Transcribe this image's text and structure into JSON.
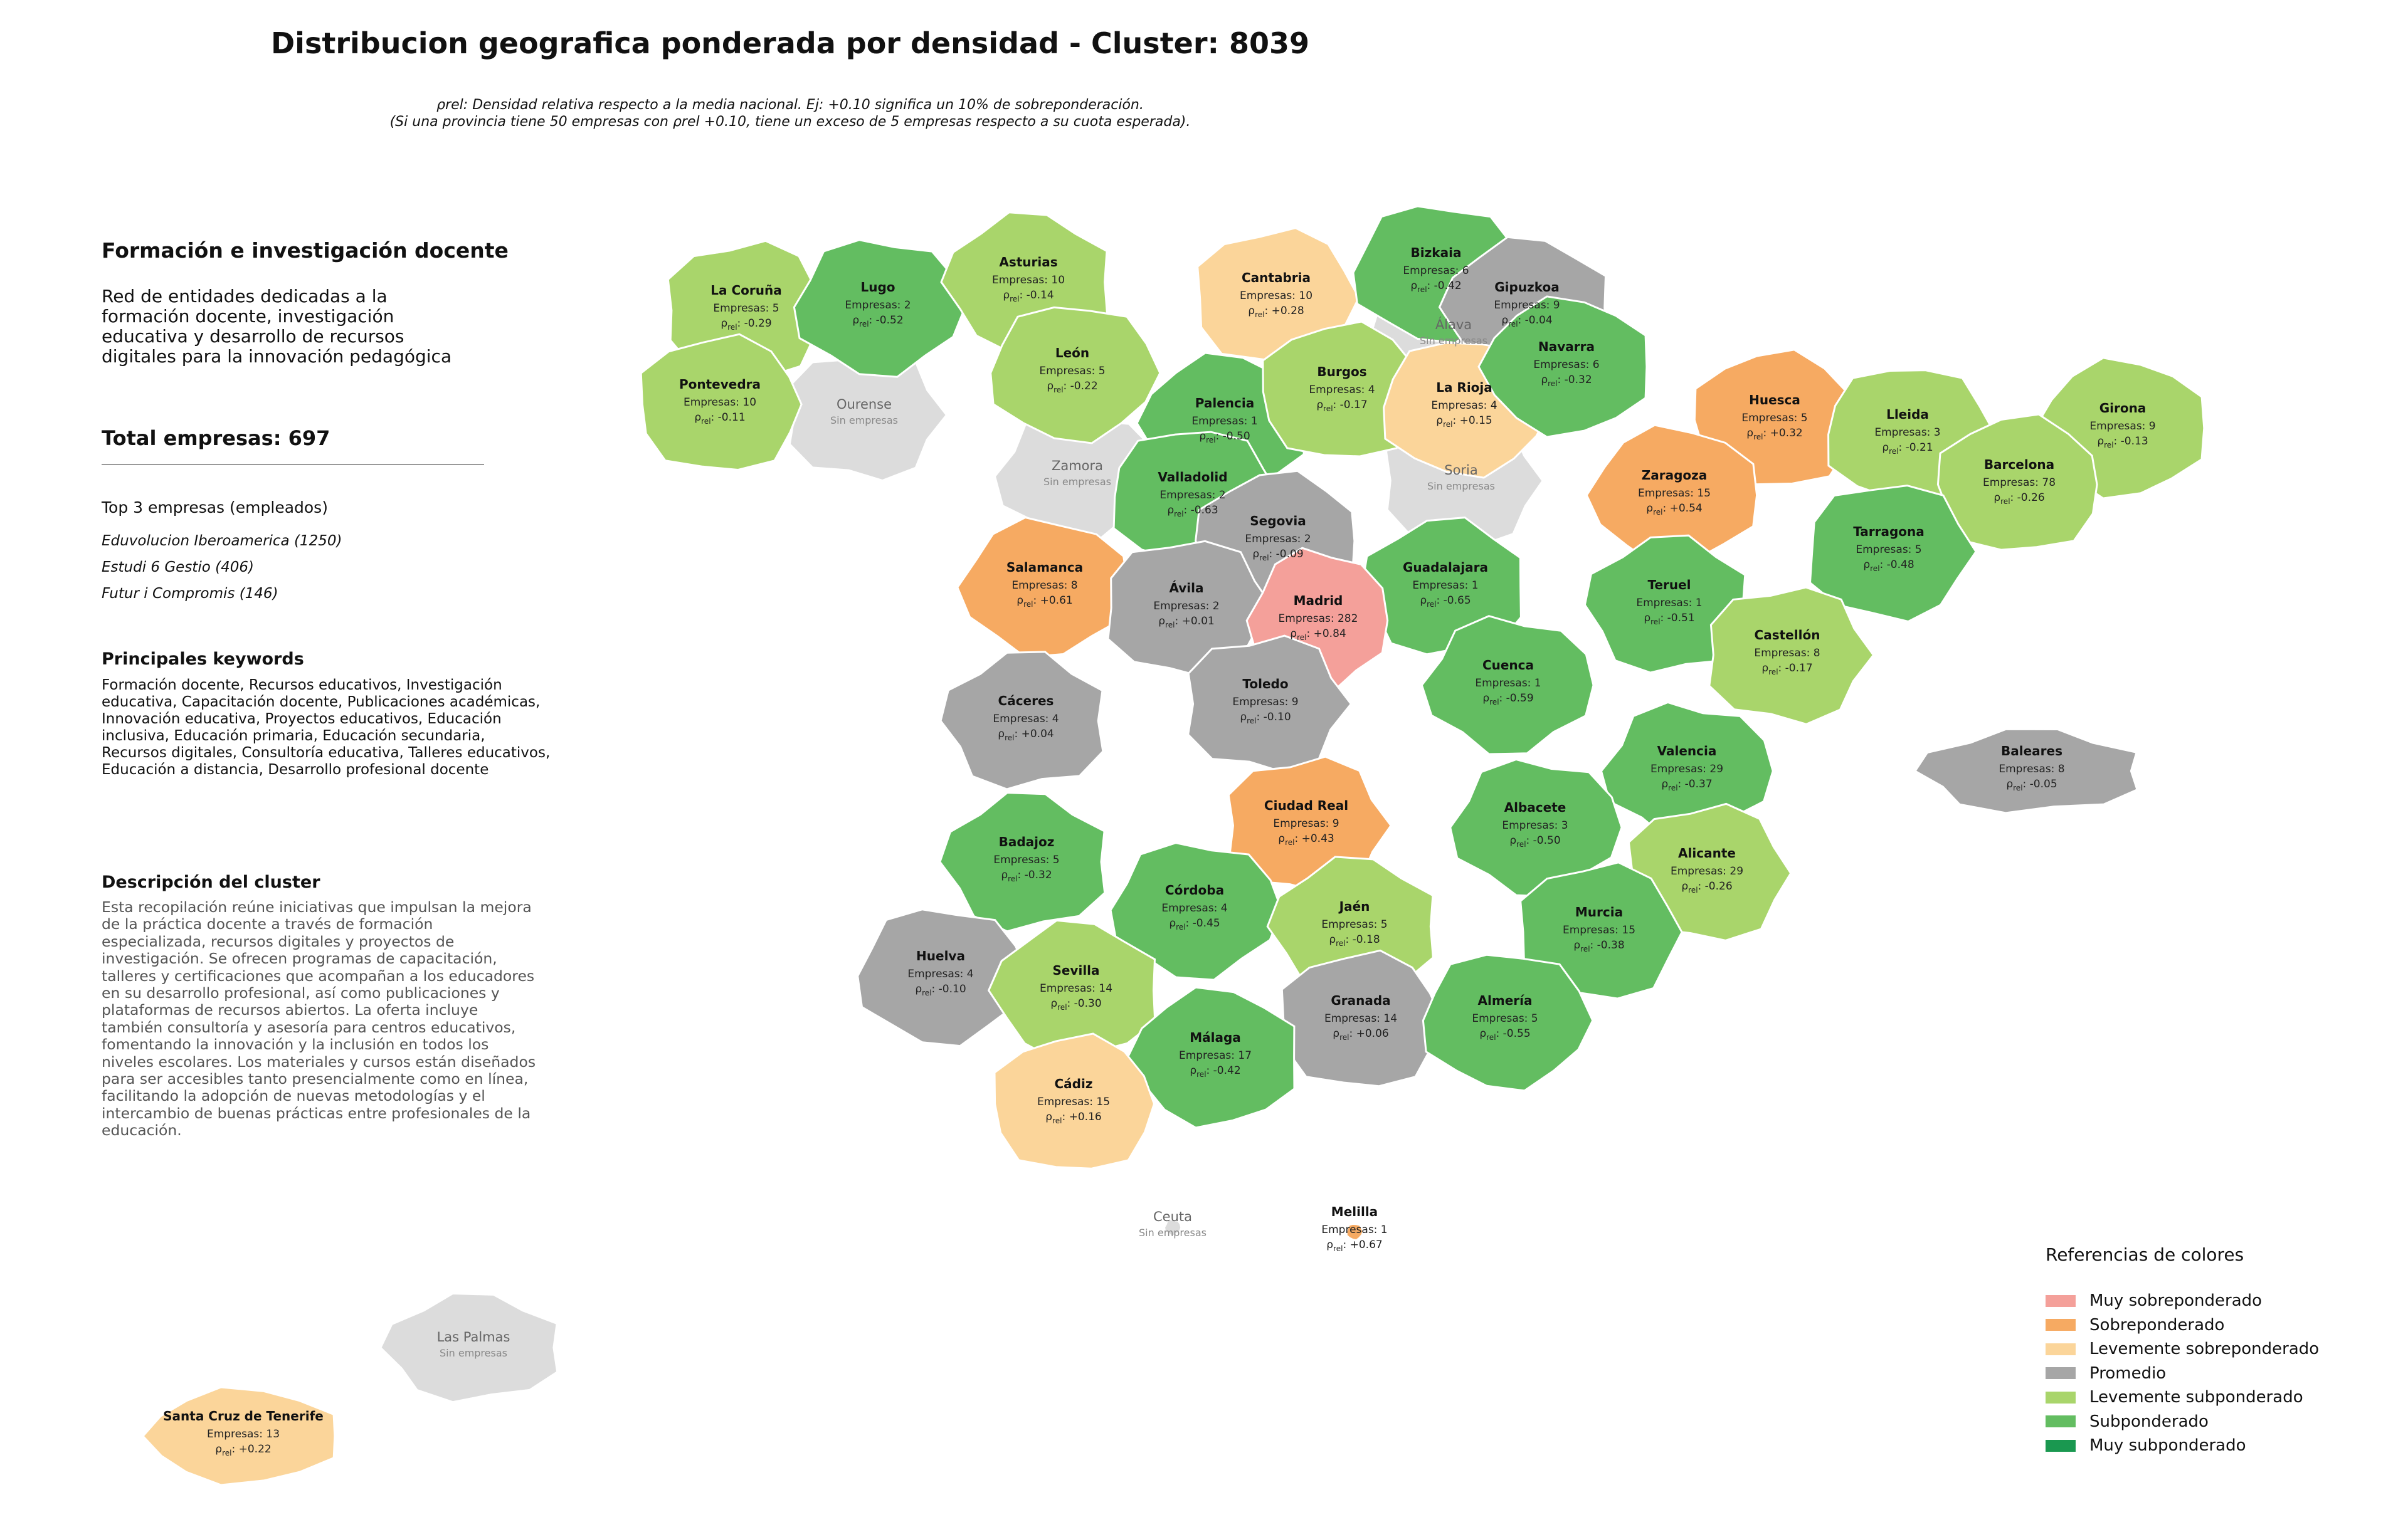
{
  "title": "Distribucion geografica ponderada por densidad - Cluster: 8039",
  "subtitle_line1": "ρrel: Densidad relativa respecto a la media nacional. Ej: +0.10 significa un 10% de sobreponderación.",
  "subtitle_line2": "(Si una provincia tiene 50 empresas con ρrel +0.10, tiene un exceso de 5 empresas respecto a su cuota esperada).",
  "panel": {
    "heading": "Formación e investigación docente",
    "description": "Red de entidades dedicadas a la formación docente, investigación educativa y desarrollo de recursos digitales para la innovación pedagógica",
    "total": "Total empresas: 697",
    "top3_heading": "Top 3 empresas (empleados)",
    "top3": [
      "Eduvolucion Iberoamerica (1250)",
      "Estudi 6 Gestio (406)",
      "Futur i Compromis (146)"
    ],
    "keywords_heading": "Principales keywords",
    "keywords": "Formación docente, Recursos educativos, Investigación educativa, Capacitación docente, Publicaciones académicas, Innovación educativa, Proyectos educativos, Educación inclusiva, Educación primaria, Educación secundaria, Recursos digitales, Consultoría educativa, Talleres educativos, Educación a distancia, Desarrollo profesional docente",
    "cluster_heading": "Descripción del cluster",
    "cluster_description": "Esta recopilación reúne iniciativas que impulsan la mejora de la práctica docente a través de formación especializada, recursos digitales y proyectos de investigación. Se ofrecen programas de capacitación, talleres y certificaciones que acompañan a los educadores en su desarrollo profesional, así como publicaciones y plataformas de recursos abiertos. La oferta incluye también consultoría y asesoría para centros educativos, fomentando la innovación y la inclusión en todos los niveles escolares. Los materiales y cursos están diseñados para ser accesibles tanto presencialmente como en línea, facilitando la adopción de nuevas metodologías y el intercambio de buenas prácticas entre profesionales de la educación."
  },
  "legend": {
    "title": "Referencias de colores",
    "items": [
      {
        "label": "Muy sobreponderado",
        "color": "#f4a09a"
      },
      {
        "label": "Sobreponderado",
        "color": "#f6aa62"
      },
      {
        "label": "Levemente sobreponderado",
        "color": "#fbd59a"
      },
      {
        "label": "Promedio",
        "color": "#a6a6a6"
      },
      {
        "label": "Levemente subponderado",
        "color": "#a9d56b"
      },
      {
        "label": "Subponderado",
        "color": "#63bd61"
      },
      {
        "label": "Muy subponderado",
        "color": "#1a9850"
      }
    ]
  },
  "no_data_label": "Sin empresas",
  "no_data_color": "#dcdcdc",
  "provinces": [
    {
      "name": "La Coruña",
      "empresas": "Empresas: 5",
      "rho": "-0.29",
      "category": "Levemente subponderado"
    },
    {
      "name": "Lugo",
      "empresas": "Empresas: 2",
      "rho": "-0.52",
      "category": "Subponderado"
    },
    {
      "name": "Asturias",
      "empresas": "Empresas: 10",
      "rho": "-0.14",
      "category": "Levemente subponderado"
    },
    {
      "name": "Cantabria",
      "empresas": "Empresas: 10",
      "rho": "+0.28",
      "category": "Levemente sobreponderado"
    },
    {
      "name": "Bizkaia",
      "empresas": "Empresas: 6",
      "rho": "-0.42",
      "category": "Subponderado"
    },
    {
      "name": "Gipuzkoa",
      "empresas": "Empresas: 9",
      "rho": "-0.04",
      "category": "Promedio"
    },
    {
      "name": "Pontevedra",
      "empresas": "Empresas: 10",
      "rho": "-0.11",
      "category": "Levemente subponderado"
    },
    {
      "name": "León",
      "empresas": "Empresas: 5",
      "rho": "-0.22",
      "category": "Levemente subponderado"
    },
    {
      "name": "Palencia",
      "empresas": "Empresas: 1",
      "rho": "-0.50",
      "category": "Subponderado"
    },
    {
      "name": "Burgos",
      "empresas": "Empresas: 4",
      "rho": "-0.17",
      "category": "Levemente subponderado"
    },
    {
      "name": "La Rioja",
      "empresas": "Empresas: 4",
      "rho": "+0.15",
      "category": "Levemente sobreponderado"
    },
    {
      "name": "Navarra",
      "empresas": "Empresas: 6",
      "rho": "-0.32",
      "category": "Subponderado"
    },
    {
      "name": "Huesca",
      "empresas": "Empresas: 5",
      "rho": "+0.32",
      "category": "Sobreponderado"
    },
    {
      "name": "Lleida",
      "empresas": "Empresas: 3",
      "rho": "-0.21",
      "category": "Levemente subponderado"
    },
    {
      "name": "Girona",
      "empresas": "Empresas: 9",
      "rho": "-0.13",
      "category": "Levemente subponderado"
    },
    {
      "name": "Barcelona",
      "empresas": "Empresas: 78",
      "rho": "-0.26",
      "category": "Levemente subponderado"
    },
    {
      "name": "Valladolid",
      "empresas": "Empresas: 2",
      "rho": "-0.63",
      "category": "Subponderado"
    },
    {
      "name": "Zaragoza",
      "empresas": "Empresas: 15",
      "rho": "+0.54",
      "category": "Sobreponderado"
    },
    {
      "name": "Segovia",
      "empresas": "Empresas: 2",
      "rho": "-0.09",
      "category": "Promedio"
    },
    {
      "name": "Tarragona",
      "empresas": "Empresas: 5",
      "rho": "-0.48",
      "category": "Subponderado"
    },
    {
      "name": "Salamanca",
      "empresas": "Empresas: 8",
      "rho": "+0.61",
      "category": "Sobreponderado"
    },
    {
      "name": "Guadalajara",
      "empresas": "Empresas: 1",
      "rho": "-0.65",
      "category": "Subponderado"
    },
    {
      "name": "Ávila",
      "empresas": "Empresas: 2",
      "rho": "+0.01",
      "category": "Promedio"
    },
    {
      "name": "Madrid",
      "empresas": "Empresas: 282",
      "rho": "+0.84",
      "category": "Muy sobreponderado"
    },
    {
      "name": "Teruel",
      "empresas": "Empresas: 1",
      "rho": "-0.51",
      "category": "Subponderado"
    },
    {
      "name": "Castellón",
      "empresas": "Empresas: 8",
      "rho": "-0.17",
      "category": "Levemente subponderado"
    },
    {
      "name": "Cuenca",
      "empresas": "Empresas: 1",
      "rho": "-0.59",
      "category": "Subponderado"
    },
    {
      "name": "Cáceres",
      "empresas": "Empresas: 4",
      "rho": "+0.04",
      "category": "Promedio"
    },
    {
      "name": "Toledo",
      "empresas": "Empresas: 9",
      "rho": "-0.10",
      "category": "Promedio"
    },
    {
      "name": "Valencia",
      "empresas": "Empresas: 29",
      "rho": "-0.37",
      "category": "Subponderado"
    },
    {
      "name": "Baleares",
      "empresas": "Empresas: 8",
      "rho": "-0.05",
      "category": "Promedio"
    },
    {
      "name": "Ciudad Real",
      "empresas": "Empresas: 9",
      "rho": "+0.43",
      "category": "Sobreponderado"
    },
    {
      "name": "Albacete",
      "empresas": "Empresas: 3",
      "rho": "-0.50",
      "category": "Subponderado"
    },
    {
      "name": "Badajoz",
      "empresas": "Empresas: 5",
      "rho": "-0.32",
      "category": "Subponderado"
    },
    {
      "name": "Alicante",
      "empresas": "Empresas: 29",
      "rho": "-0.26",
      "category": "Levemente subponderado"
    },
    {
      "name": "Córdoba",
      "empresas": "Empresas: 4",
      "rho": "-0.45",
      "category": "Subponderado"
    },
    {
      "name": "Jaén",
      "empresas": "Empresas: 5",
      "rho": "-0.18",
      "category": "Levemente subponderado"
    },
    {
      "name": "Murcia",
      "empresas": "Empresas: 15",
      "rho": "-0.38",
      "category": "Subponderado"
    },
    {
      "name": "Huelva",
      "empresas": "Empresas: 4",
      "rho": "-0.10",
      "category": "Promedio"
    },
    {
      "name": "Sevilla",
      "empresas": "Empresas: 14",
      "rho": "-0.30",
      "category": "Levemente subponderado"
    },
    {
      "name": "Granada",
      "empresas": "Empresas: 14",
      "rho": "+0.06",
      "category": "Promedio"
    },
    {
      "name": "Almería",
      "empresas": "Empresas: 5",
      "rho": "-0.55",
      "category": "Subponderado"
    },
    {
      "name": "Málaga",
      "empresas": "Empresas: 17",
      "rho": "-0.42",
      "category": "Subponderado"
    },
    {
      "name": "Cádiz",
      "empresas": "Empresas: 15",
      "rho": "+0.16",
      "category": "Levemente sobreponderado"
    },
    {
      "name": "Melilla",
      "empresas": "Empresas: 1",
      "rho": "+0.67",
      "category": "Sobreponderado"
    },
    {
      "name": "Santa Cruz de Tenerife",
      "empresas": "Empresas: 13",
      "rho": "+0.22",
      "category": "Levemente sobreponderado"
    }
  ],
  "no_data_provinces": [
    "Ourense",
    "Zamora",
    "Álava",
    "Soria",
    "Ceuta",
    "Las Palmas"
  ]
}
